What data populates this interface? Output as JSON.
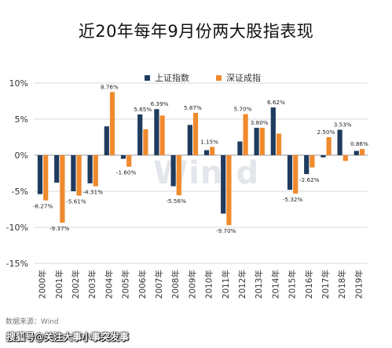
{
  "chart_data": {
    "type": "bar",
    "title": "近20年每年9月份两大股指表现",
    "categories": [
      "2000年",
      "2001年",
      "2002年",
      "2003年",
      "2004年",
      "2005年",
      "2006年",
      "2007年",
      "2008年",
      "2009年",
      "2010年",
      "2011年",
      "2012年",
      "2013年",
      "2014年",
      "2015年",
      "2016年",
      "2017年",
      "2018年",
      "2019年"
    ],
    "series": [
      {
        "name": "上证指数",
        "color": "#1f3b5e",
        "values": [
          -5.4,
          -3.8,
          -5.0,
          -3.9,
          4.0,
          -0.5,
          5.65,
          6.39,
          -4.3,
          4.2,
          0.7,
          -8.1,
          1.9,
          3.8,
          6.62,
          -4.8,
          -2.62,
          -0.3,
          3.53,
          0.6
        ]
      },
      {
        "name": "深证成指",
        "color": "#f08a2e",
        "values": [
          -6.27,
          -9.37,
          -5.61,
          -4.31,
          8.76,
          -1.6,
          3.6,
          5.5,
          -5.56,
          5.87,
          1.15,
          -9.7,
          5.7,
          3.8,
          3.0,
          -5.32,
          -1.7,
          2.5,
          -0.8,
          0.86
        ]
      }
    ],
    "data_labels": [
      {
        "i": 0,
        "text": "-6.27%"
      },
      {
        "i": 1,
        "text": "-9.37%"
      },
      {
        "i": 2,
        "text": "-5.61%"
      },
      {
        "i": 3,
        "text": "-4.31%"
      },
      {
        "i": 4,
        "text": "8.76%"
      },
      {
        "i": 5,
        "text": "-1.60%"
      },
      {
        "i": 6,
        "text": "5.65%"
      },
      {
        "i": 7,
        "text": "6.39%"
      },
      {
        "i": 8,
        "text": "-5.56%"
      },
      {
        "i": 9,
        "text": "5.87%"
      },
      {
        "i": 10,
        "text": "1.15%"
      },
      {
        "i": 11,
        "text": "-9.70%"
      },
      {
        "i": 12,
        "text": "5.70%"
      },
      {
        "i": 13,
        "text": "3.80%"
      },
      {
        "i": 14,
        "text": "6.62%"
      },
      {
        "i": 15,
        "text": "-5.32%"
      },
      {
        "i": 16,
        "text": "-2.62%"
      },
      {
        "i": 17,
        "text": "2.50%"
      },
      {
        "i": 18,
        "text": "3.53%"
      },
      {
        "i": 19,
        "text": "0.86%"
      }
    ],
    "yticks": [
      "10%",
      "5%",
      "0%",
      "-5%",
      "-10%",
      "-15%"
    ],
    "ylim": [
      -15,
      10
    ],
    "grid": true,
    "legend_position": "top-right"
  },
  "source_text": "数据来源：Wind",
  "background_watermark": "Win.d",
  "footer_watermark": "搜狐号@关注大事小事突发事"
}
